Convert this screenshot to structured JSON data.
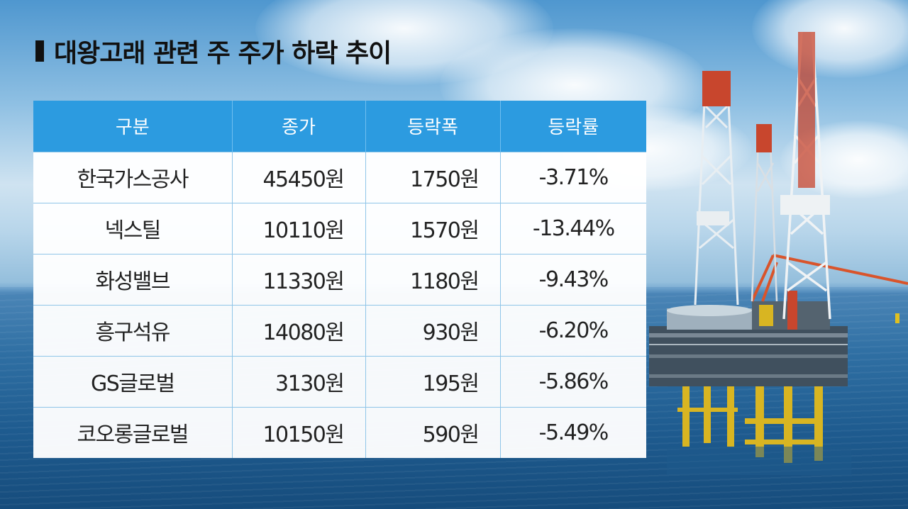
{
  "title": "대왕고래 관련 주 주가 하락 추이",
  "table": {
    "headers": [
      "구분",
      "종가",
      "등락폭",
      "등락률"
    ],
    "rows": [
      {
        "name": "한국가스공사",
        "price": "45450원",
        "change": "1750원",
        "rate": "-3.71%"
      },
      {
        "name": "넥스틸",
        "price": "10110원",
        "change": "1570원",
        "rate": "-13.44%"
      },
      {
        "name": "화성밸브",
        "price": "11330원",
        "change": "1180원",
        "rate": "-9.43%"
      },
      {
        "name": "흥구석유",
        "price": "14080원",
        "change": "930원",
        "rate": "-6.20%"
      },
      {
        "name": "GS글로벌",
        "price": "3130원",
        "change": "195원",
        "rate": "-5.86%"
      },
      {
        "name": "코오롱글로벌",
        "price": "10150원",
        "change": "590원",
        "rate": "-5.49%"
      }
    ]
  },
  "colors": {
    "header_bg": "#2c9be0",
    "header_text": "#ffffff",
    "grid_line": "#8fc5e8"
  },
  "background": {
    "scene": "offshore-oil-rig-over-sea"
  }
}
